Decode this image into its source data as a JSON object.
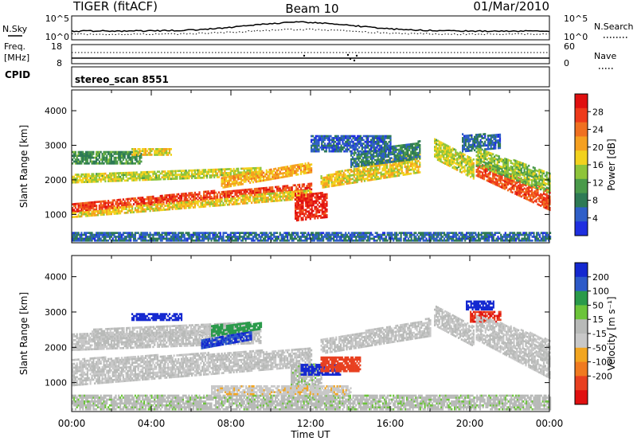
{
  "header": {
    "title_left": "TIGER (fitACF)",
    "title_center": "Beam 10",
    "title_right": "01/Mar/2010"
  },
  "strip_labels": {
    "nsky": "N.Sky",
    "nsearch": "N.Search",
    "freq_line1": "Freq.",
    "freq_line2": "[MHz]",
    "nave": "Nave",
    "cpid": "CPID",
    "cpid_value": "stereo_scan 8551"
  },
  "noise_strip": {
    "left_ticks": [
      "10^5",
      "10^0"
    ],
    "right_ticks": [
      "10^5",
      "10^0"
    ]
  },
  "freq_strip": {
    "left_ticks": [
      "18",
      "8"
    ],
    "right_ticks": [
      "60",
      "0"
    ]
  },
  "x_axis": {
    "label": "Time UT",
    "ticks": [
      "00:00",
      "04:00",
      "08:00",
      "12:00",
      "16:00",
      "20:00",
      "00:00"
    ]
  },
  "colors": {
    "power": [
      "#1f2fe0",
      "#2f5fc8",
      "#2e7a55",
      "#4a9a4a",
      "#8ec43a",
      "#f2d21e",
      "#f5a020",
      "#f07020",
      "#ee3a1a",
      "#e01010"
    ],
    "velocity": [
      "#1428d0",
      "#2d5ac8",
      "#2a9a4a",
      "#6cc43a",
      "#b8bab8",
      "#c8c8c8",
      "#f2a520",
      "#f07a20",
      "#e84020",
      "#e01010"
    ]
  },
  "chart_data": [
    {
      "type": "heatmap",
      "title": "",
      "xlabel": "",
      "ylabel": "Slant Range [km]",
      "x_range_hours": [
        0,
        24
      ],
      "ylim": [
        180,
        4600
      ],
      "yticks": [
        "1000",
        "2000",
        "3000",
        "4000"
      ],
      "colorbar": {
        "label": "Power [dB]",
        "ticks": [
          "4",
          "8",
          "12",
          "16",
          "20",
          "24",
          "28"
        ],
        "range": [
          0,
          32
        ]
      },
      "regions": [
        {
          "t": [
            0.0,
            12.0
          ],
          "r_start": [
            1050,
            1700
          ],
          "r_end": [
            1300,
            1900
          ],
          "value": 27
        },
        {
          "t": [
            0.0,
            12.0
          ],
          "r_start": [
            900,
            1450
          ],
          "r_end": [
            1050,
            1700
          ],
          "value": 18
        },
        {
          "t": [
            0.0,
            9.5
          ],
          "r_start": [
            1900,
            2100
          ],
          "r_end": [
            2150,
            2350
          ],
          "value": 16
        },
        {
          "t": [
            0.0,
            3.5
          ],
          "r_start": [
            2450,
            2450
          ],
          "r_end": [
            2800,
            2800
          ],
          "value": 10
        },
        {
          "t": [
            3.0,
            5.0
          ],
          "r_start": [
            2700,
            2700
          ],
          "r_end": [
            2900,
            2900
          ],
          "value": 18
        },
        {
          "t": [
            7.5,
            12.0
          ],
          "r_start": [
            1750,
            2200
          ],
          "r_end": [
            2050,
            2500
          ],
          "value": 20
        },
        {
          "t": [
            11.2,
            12.8
          ],
          "r_start": [
            800,
            900
          ],
          "r_end": [
            1600,
            1600
          ],
          "value": 29
        },
        {
          "t": [
            12.5,
            17.5
          ],
          "r_start": [
            1750,
            2200
          ],
          "r_end": [
            2100,
            2800
          ],
          "value": 18
        },
        {
          "t": [
            14.0,
            17.5
          ],
          "r_start": [
            2350,
            2600
          ],
          "r_end": [
            2750,
            3100
          ],
          "value": 8
        },
        {
          "t": [
            18.2,
            20.2
          ],
          "r_start": [
            2600,
            2000
          ],
          "r_end": [
            3200,
            2600
          ],
          "value": 16
        },
        {
          "t": [
            19.6,
            21.5
          ],
          "r_start": [
            2800,
            2900
          ],
          "r_end": [
            3300,
            3300
          ],
          "value": 6
        },
        {
          "t": [
            20.3,
            24.0
          ],
          "r_start": [
            2100,
            1100
          ],
          "r_end": [
            2500,
            1700
          ],
          "value": 26
        },
        {
          "t": [
            20.3,
            24.0
          ],
          "r_start": [
            2400,
            1600
          ],
          "r_end": [
            2900,
            2200
          ],
          "value": 14
        },
        {
          "t": [
            0.0,
            24.0
          ],
          "r_start": [
            220,
            220
          ],
          "r_end": [
            480,
            480
          ],
          "value": 6
        },
        {
          "t": [
            12.0,
            16.0
          ],
          "r_start": [
            2800,
            2800
          ],
          "r_end": [
            3250,
            3250
          ],
          "value": 5
        }
      ]
    },
    {
      "type": "heatmap",
      "title": "",
      "xlabel": "Time UT",
      "ylabel": "Slant Range [km]",
      "x_range_hours": [
        0,
        24
      ],
      "ylim": [
        180,
        4600
      ],
      "yticks": [
        "1000",
        "2000",
        "3000",
        "4000"
      ],
      "colorbar": {
        "label": "Velocity [m s^-1]",
        "ticks": [
          "200",
          "100",
          "50",
          "15",
          "-15",
          "-50",
          "-100",
          "-200"
        ],
        "range": [
          -250,
          250
        ]
      },
      "regions": [
        {
          "t": [
            0.0,
            12.0
          ],
          "r_start": [
            900,
            1450
          ],
          "r_end": [
            1650,
            1950
          ],
          "value": 0
        },
        {
          "t": [
            0.0,
            9.5
          ],
          "r_start": [
            1900,
            2100
          ],
          "r_end": [
            2350,
            2500
          ],
          "value": 0
        },
        {
          "t": [
            1.0,
            9.0
          ],
          "r_start": [
            2200,
            2400
          ],
          "r_end": [
            2500,
            2700
          ],
          "value": 0
        },
        {
          "t": [
            3.0,
            5.5
          ],
          "r_start": [
            2750,
            2750
          ],
          "r_end": [
            2950,
            2950
          ],
          "value": 220
        },
        {
          "t": [
            6.5,
            9.0
          ],
          "r_start": [
            1950,
            2200
          ],
          "r_end": [
            2200,
            2450
          ],
          "value": 200
        },
        {
          "t": [
            7.0,
            9.5
          ],
          "r_start": [
            2300,
            2500
          ],
          "r_end": [
            2600,
            2700
          ],
          "value": 120
        },
        {
          "t": [
            11.0,
            12.5
          ],
          "r_start": [
            700,
            800
          ],
          "r_end": [
            1500,
            1500
          ],
          "value": 40
        },
        {
          "t": [
            11.5,
            13.5
          ],
          "r_start": [
            1200,
            1200
          ],
          "r_end": [
            1500,
            1500
          ],
          "value": 220
        },
        {
          "t": [
            12.5,
            14.5
          ],
          "r_start": [
            1300,
            1300
          ],
          "r_end": [
            1700,
            1700
          ],
          "value": -180
        },
        {
          "t": [
            12.5,
            18.0
          ],
          "r_start": [
            1800,
            2300
          ],
          "r_end": [
            2200,
            2800
          ],
          "value": 0
        },
        {
          "t": [
            18.2,
            20.2
          ],
          "r_start": [
            2600,
            2000
          ],
          "r_end": [
            3200,
            2600
          ],
          "value": 0
        },
        {
          "t": [
            19.8,
            21.2
          ],
          "r_start": [
            3050,
            3050
          ],
          "r_end": [
            3300,
            3300
          ],
          "value": 220
        },
        {
          "t": [
            20.0,
            21.5
          ],
          "r_start": [
            2700,
            2700
          ],
          "r_end": [
            3000,
            3000
          ],
          "value": -200
        },
        {
          "t": [
            20.3,
            24.0
          ],
          "r_start": [
            2200,
            1100
          ],
          "r_end": [
            2900,
            2200
          ],
          "value": 0
        },
        {
          "t": [
            0.0,
            24.0
          ],
          "r_start": [
            220,
            220
          ],
          "r_end": [
            650,
            650
          ],
          "value": 40
        },
        {
          "t": [
            7.0,
            14.0
          ],
          "r_start": [
            650,
            650
          ],
          "r_end": [
            900,
            900
          ],
          "value": -40
        }
      ]
    }
  ]
}
